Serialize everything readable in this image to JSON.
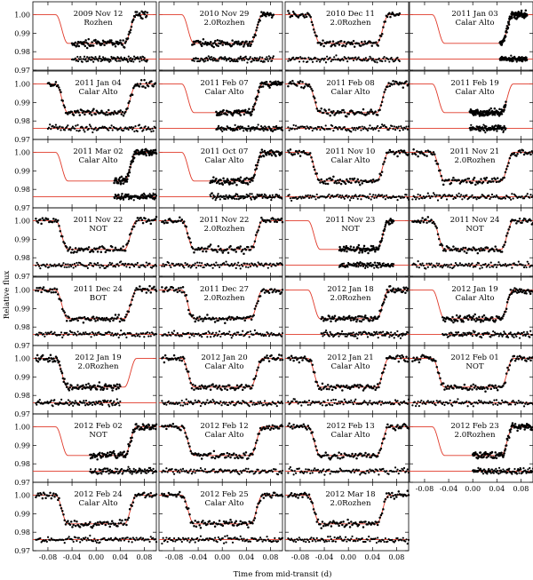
{
  "chart_data": {
    "type": "scatter",
    "xlabel": "Time from mid-transit (d)",
    "ylabel": "Relative flux",
    "xlim": [
      -0.105,
      0.1
    ],
    "ylim": [
      0.97,
      1.007
    ],
    "x_ticks": [
      "-0.08",
      "-0.04",
      "0.00",
      "0.04",
      "0.08"
    ],
    "y_ticks": [
      "1.00",
      "0.99",
      "0.98",
      "0.97"
    ],
    "grid": false,
    "model_color": "#e03a2a",
    "data_color": "#000000",
    "panels": [
      {
        "date": "2009 Nov 12",
        "site": "Rozhen"
      },
      {
        "date": "2010 Nov 29",
        "site": "2.0Rozhen"
      },
      {
        "date": "2010 Dec 11",
        "site": "2.0Rozhen"
      },
      {
        "date": "2011 Jan 03",
        "site": "Calar Alto"
      },
      {
        "date": "2011 Jan 04",
        "site": "Calar Alto"
      },
      {
        "date": "2011 Feb 07",
        "site": "Calar Alto"
      },
      {
        "date": "2011 Feb 08",
        "site": "Calar Alto"
      },
      {
        "date": "2011 Feb 19",
        "site": "Calar Alto"
      },
      {
        "date": "2011 Mar 02",
        "site": "Calar Alto"
      },
      {
        "date": "2011 Oct 07",
        "site": "Calar Alto"
      },
      {
        "date": "2011 Nov 10",
        "site": "Calar Alto"
      },
      {
        "date": "2011 Nov 21",
        "site": "2.0Rozhen"
      },
      {
        "date": "2011 Nov 22",
        "site": "NOT"
      },
      {
        "date": "2011 Nov 22",
        "site": "2.0Rozhen"
      },
      {
        "date": "2011 Nov 23",
        "site": "NOT"
      },
      {
        "date": "2011 Nov 24",
        "site": "NOT"
      },
      {
        "date": "2011 Dec 24",
        "site": "BOT"
      },
      {
        "date": "2011 Dec 27",
        "site": "2.0Rozhen"
      },
      {
        "date": "2012 Jan 18",
        "site": "2.0Rozhen"
      },
      {
        "date": "2012 Jan 19",
        "site": "Calar Alto"
      },
      {
        "date": "2012 Jan 19",
        "site": "2.0Rozhen"
      },
      {
        "date": "2012 Jan 20",
        "site": "Calar Alto"
      },
      {
        "date": "2012 Jan 21",
        "site": "Calar Alto"
      },
      {
        "date": "2012 Feb 01",
        "site": "NOT"
      },
      {
        "date": "2012 Feb 02",
        "site": "NOT"
      },
      {
        "date": "2012 Feb 12",
        "site": "Calar Alto"
      },
      {
        "date": "2012 Feb 13",
        "site": "Calar Alto"
      },
      {
        "date": "2012 Feb 23",
        "site": "2.0Rozhen"
      },
      {
        "date": "2012 Feb 24",
        "site": "Calar Alto"
      },
      {
        "date": "2012 Feb 25",
        "site": "Calar Alto"
      },
      {
        "date": "2012 Mar 18",
        "site": "2.0Rozhen"
      }
    ]
  }
}
